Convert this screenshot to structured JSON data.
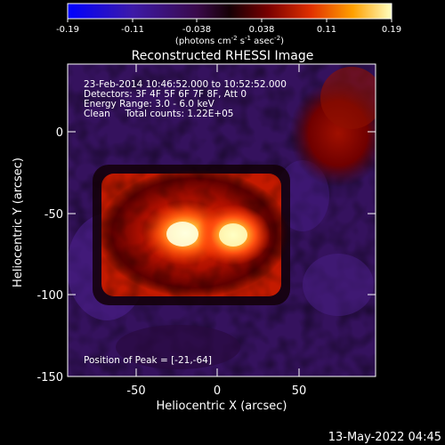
{
  "colorbar": {
    "ticks": [
      "-0.19",
      "-0.11",
      "-0.038",
      "0.038",
      "0.11",
      "0.19"
    ],
    "units_prefix": "(photons cm",
    "units_exp1": "-2",
    "units_mid1": " s",
    "units_exp2": "-1",
    "units_mid2": " asec",
    "units_exp3": "-2",
    "units_suffix": ")"
  },
  "title": "Reconstructed RHESSI Image",
  "info": {
    "line1": "23-Feb-2014 10:46:52.000 to 10:52:52.000",
    "line2": "Detectors: 3F 4F 5F 6F 7F 8F, Att 0",
    "line3": "Energy Range: 3.0 - 6.0 keV",
    "line4": "Clean     Total counts: 1.22E+05"
  },
  "peak_text": "Position of Peak = [-21,-64]",
  "axes": {
    "xlabel": "Heliocentric X (arcsec)",
    "ylabel": "Heliocentric Y (arcsec)",
    "xticks": [
      "-50",
      "0",
      "50"
    ],
    "yticks": [
      "0",
      "-50",
      "-100",
      "-150"
    ]
  },
  "footer_date": "13-May-2022 04:45"
}
